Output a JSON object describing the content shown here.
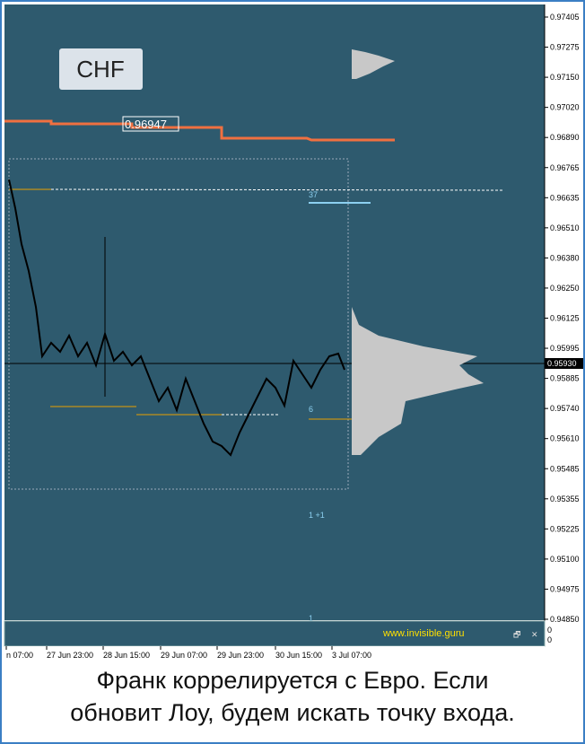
{
  "header": {
    "symbol": "CHF",
    "price_label": "0.96947"
  },
  "price_axis": {
    "labels": [
      "0.97405",
      "0.97275",
      "0.97150",
      "0.97020",
      "0.96890",
      "0.96765",
      "0.96635",
      "0.96510",
      "0.96380",
      "0.96250",
      "0.96125",
      "0.95995",
      "0.95885",
      "0.95740",
      "0.95610",
      "0.95485",
      "0.95355",
      "0.95225",
      "0.95100",
      "0.94975",
      "0.94850"
    ],
    "current": "0.95930"
  },
  "time_axis": {
    "labels": [
      "n 07:00",
      "27 Jun 23:00",
      "28 Jun 15:00",
      "29 Jun 07:00",
      "29 Jun 23:00",
      "30 Jun 15:00",
      "3 Jul 07:00"
    ]
  },
  "annotations": {
    "upper_count": "37",
    "lower_count": "6",
    "bottom_count": "1 +1",
    "indicator_count": "1"
  },
  "indicator_panel": {
    "site": "www.invisible.guru",
    "scale_top": "0",
    "scale_bottom": "0"
  },
  "caption": {
    "lines": [
      "Франк коррелируется с Евро. Если",
      "обновит Лоу, будем искать точку входа."
    ]
  }
}
